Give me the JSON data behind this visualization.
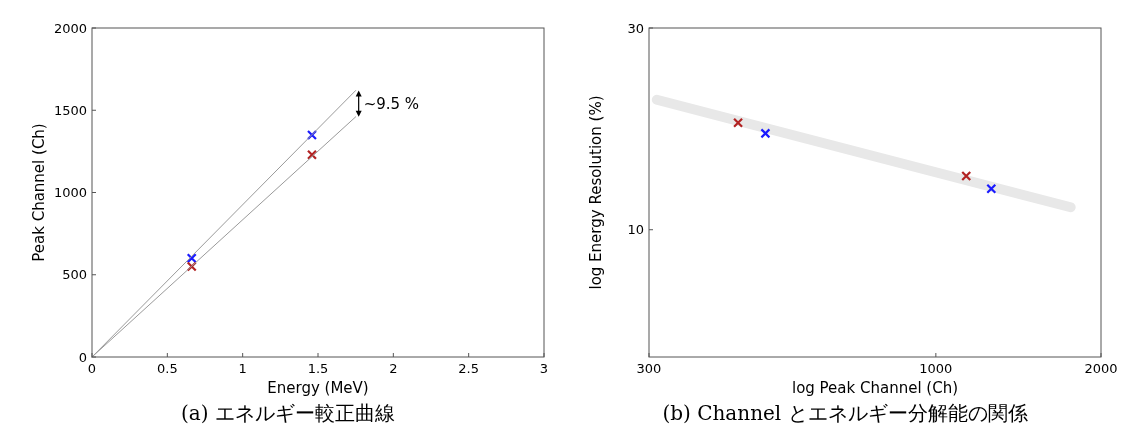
{
  "chart_data": [
    {
      "type": "scatter",
      "xlabel": "Energy (MeV)",
      "ylabel": "Peak Channel (Ch)",
      "xlim": [
        0,
        3
      ],
      "xticks": [
        0,
        0.5,
        1,
        1.5,
        2,
        2.5,
        3
      ],
      "ylim": [
        0,
        2000
      ],
      "yticks": [
        0,
        500,
        1000,
        1500,
        2000
      ],
      "grid": false,
      "marker": "cross",
      "x": [
        0.662,
        1.46
      ],
      "series": [
        {
          "color": "#1a1aff",
          "values": [
            600,
            1350
          ]
        },
        {
          "color": "#b22222",
          "values": [
            550,
            1230
          ]
        },
        {
          "type": "line",
          "marker": "none",
          "color": "#9a9a9a",
          "x": [
            0,
            1.75
          ],
          "values": [
            0,
            1620
          ]
        },
        {
          "type": "line",
          "marker": "none",
          "color": "#9a9a9a",
          "x": [
            0,
            1.75
          ],
          "values": [
            0,
            1460
          ]
        }
      ],
      "annotations": [
        "~9.5 %",
        "(a) エネルギー較正曲線"
      ]
    },
    {
      "type": "scatter",
      "xlabel": "log Peak Channel (Ch)",
      "ylabel": "log Energy Resolution (%)",
      "log": "xy",
      "xlim": [
        300,
        2000
      ],
      "xticks": [
        300,
        1000,
        2000
      ],
      "ylim": [
        5,
        30
      ],
      "yticks": [
        10,
        30
      ],
      "grid": false,
      "marker": "cross",
      "series": [
        {
          "type": "line",
          "marker": "none",
          "color": "#e8e8e8",
          "x": [
            310,
            1761
          ],
          "values": [
            20.3,
            11.3
          ]
        },
        {
          "color": "#b22222",
          "x": [
            436,
            1136
          ],
          "values": [
            17.9,
            13.4
          ]
        },
        {
          "color": "#1a1aff",
          "x": [
            489,
            1262
          ],
          "values": [
            16.9,
            12.5
          ]
        }
      ],
      "annotations": [
        "(b) Channel とエネルギー分解能の関係"
      ]
    }
  ]
}
